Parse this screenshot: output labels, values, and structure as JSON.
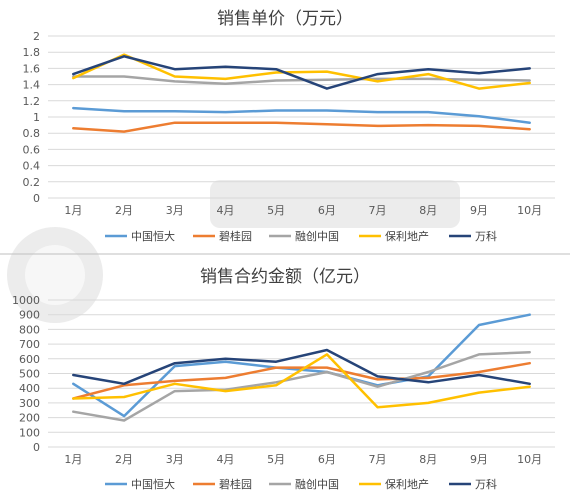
{
  "chart_data": [
    {
      "type": "line",
      "title": "销售单价（万元）",
      "categories": [
        "1月",
        "2月",
        "3月",
        "4月",
        "5月",
        "6月",
        "7月",
        "8月",
        "9月",
        "10月"
      ],
      "yticks": [
        "0",
        "0.2",
        "0.4",
        "0.6",
        "0.8",
        "1",
        "1.2",
        "1.4",
        "1.6",
        "1.8",
        "2"
      ],
      "ylim": [
        0,
        2
      ],
      "grid": true,
      "legend_position": "bottom",
      "series": [
        {
          "name": "中国恒大",
          "color": "#5b9bd5",
          "values": [
            1.11,
            1.07,
            1.07,
            1.06,
            1.08,
            1.08,
            1.06,
            1.06,
            1.01,
            0.93
          ]
        },
        {
          "name": "碧桂园",
          "color": "#ed7d31",
          "values": [
            0.86,
            0.82,
            0.93,
            0.93,
            0.93,
            0.91,
            0.89,
            0.9,
            0.89,
            0.85
          ]
        },
        {
          "name": "融创中国",
          "color": "#a5a5a5",
          "values": [
            1.5,
            1.5,
            1.44,
            1.41,
            1.45,
            1.46,
            1.47,
            1.47,
            1.46,
            1.45
          ]
        },
        {
          "name": "保利地产",
          "color": "#ffc000",
          "values": [
            1.48,
            1.77,
            1.5,
            1.47,
            1.55,
            1.56,
            1.44,
            1.53,
            1.35,
            1.42
          ]
        },
        {
          "name": "万科",
          "color": "#264478",
          "values": [
            1.53,
            1.75,
            1.59,
            1.62,
            1.59,
            1.35,
            1.53,
            1.59,
            1.54,
            1.6
          ]
        }
      ]
    },
    {
      "type": "line",
      "title": "销售合约金额（亿元）",
      "categories": [
        "1月",
        "2月",
        "3月",
        "4月",
        "5月",
        "6月",
        "7月",
        "8月",
        "9月",
        "10月"
      ],
      "yticks": [
        "0",
        "100",
        "200",
        "300",
        "400",
        "500",
        "600",
        "700",
        "800",
        "900",
        "1000"
      ],
      "ylim": [
        0,
        1000
      ],
      "grid": true,
      "legend_position": "bottom",
      "series": [
        {
          "name": "中国恒大",
          "color": "#5b9bd5",
          "values": [
            430,
            210,
            550,
            580,
            540,
            510,
            420,
            480,
            830,
            900
          ]
        },
        {
          "name": "碧桂园",
          "color": "#ed7d31",
          "values": [
            330,
            420,
            450,
            470,
            540,
            540,
            460,
            470,
            510,
            570
          ]
        },
        {
          "name": "融创中国",
          "color": "#a5a5a5",
          "values": [
            240,
            180,
            380,
            390,
            440,
            510,
            410,
            510,
            630,
            645
          ]
        },
        {
          "name": "保利地产",
          "color": "#ffc000",
          "values": [
            330,
            340,
            430,
            380,
            420,
            630,
            270,
            300,
            370,
            410
          ]
        },
        {
          "name": "万科",
          "color": "#264478",
          "values": [
            490,
            430,
            570,
            600,
            580,
            660,
            480,
            440,
            490,
            430
          ]
        }
      ]
    }
  ]
}
